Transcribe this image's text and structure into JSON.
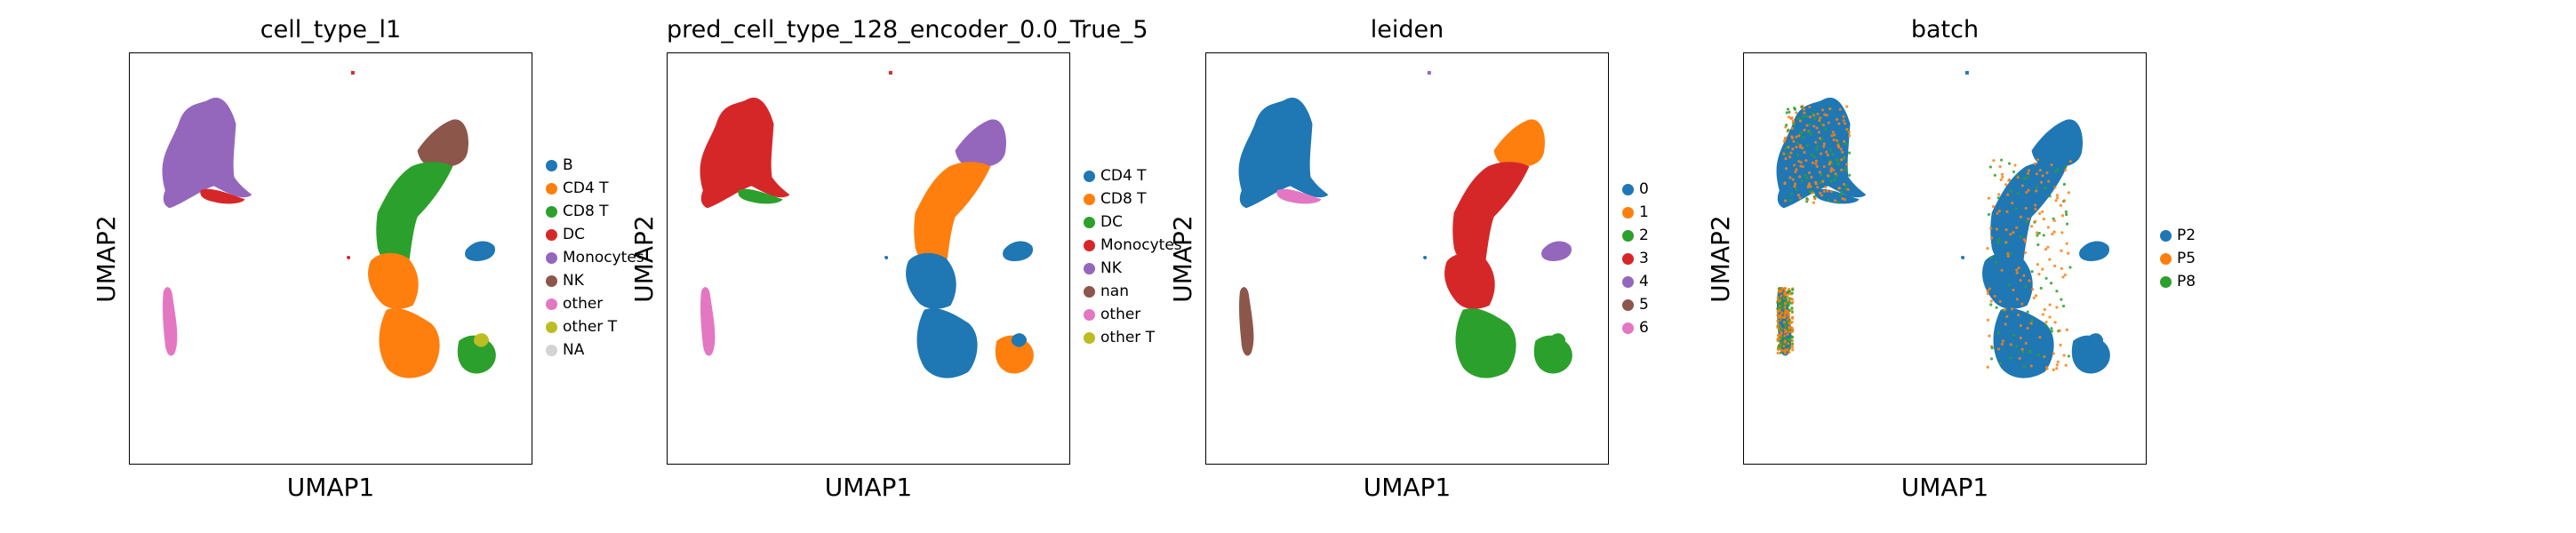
{
  "colors": {
    "blue": "#1f77b4",
    "orange": "#ff7f0e",
    "green": "#2ca02c",
    "red": "#d62728",
    "purple": "#9467bd",
    "brown": "#8c564b",
    "pink": "#e377c2",
    "olive": "#bcbd22",
    "grey": "#d3d3d3"
  },
  "chart_data": [
    {
      "type": "scatter",
      "title": "cell_type_l1",
      "xlabel": "UMAP1",
      "ylabel": "UMAP2",
      "legend_position": "right",
      "legend": [
        {
          "label": "B",
          "color": "#1f77b4"
        },
        {
          "label": "CD4 T",
          "color": "#ff7f0e"
        },
        {
          "label": "CD8 T",
          "color": "#2ca02c"
        },
        {
          "label": "DC",
          "color": "#d62728"
        },
        {
          "label": "Monocytes",
          "color": "#9467bd"
        },
        {
          "label": "NK",
          "color": "#8c564b"
        },
        {
          "label": "other",
          "color": "#e377c2"
        },
        {
          "label": "other T",
          "color": "#bcbd22"
        },
        {
          "label": "NA",
          "color": "#d3d3d3"
        }
      ]
    },
    {
      "type": "scatter",
      "title": "pred_cell_type_128_encoder_0.0_True_5",
      "xlabel": "UMAP1",
      "ylabel": "UMAP2",
      "legend_position": "right",
      "legend": [
        {
          "label": "CD4 T",
          "color": "#1f77b4"
        },
        {
          "label": "CD8 T",
          "color": "#ff7f0e"
        },
        {
          "label": "DC",
          "color": "#2ca02c"
        },
        {
          "label": "Monocytes",
          "color": "#d62728"
        },
        {
          "label": "NK",
          "color": "#9467bd"
        },
        {
          "label": "nan",
          "color": "#8c564b"
        },
        {
          "label": "other",
          "color": "#e377c2"
        },
        {
          "label": "other T",
          "color": "#bcbd22"
        }
      ]
    },
    {
      "type": "scatter",
      "title": "leiden",
      "xlabel": "UMAP1",
      "ylabel": "UMAP2",
      "legend_position": "right",
      "legend": [
        {
          "label": "0",
          "color": "#1f77b4"
        },
        {
          "label": "1",
          "color": "#ff7f0e"
        },
        {
          "label": "2",
          "color": "#2ca02c"
        },
        {
          "label": "3",
          "color": "#d62728"
        },
        {
          "label": "4",
          "color": "#9467bd"
        },
        {
          "label": "5",
          "color": "#8c564b"
        },
        {
          "label": "6",
          "color": "#e377c2"
        }
      ]
    },
    {
      "type": "scatter",
      "title": "batch",
      "xlabel": "UMAP1",
      "ylabel": "UMAP2",
      "legend_position": "right",
      "legend": [
        {
          "label": "P2",
          "color": "#1f77b4"
        },
        {
          "label": "P5",
          "color": "#ff7f0e"
        },
        {
          "label": "P8",
          "color": "#2ca02c"
        }
      ]
    }
  ]
}
